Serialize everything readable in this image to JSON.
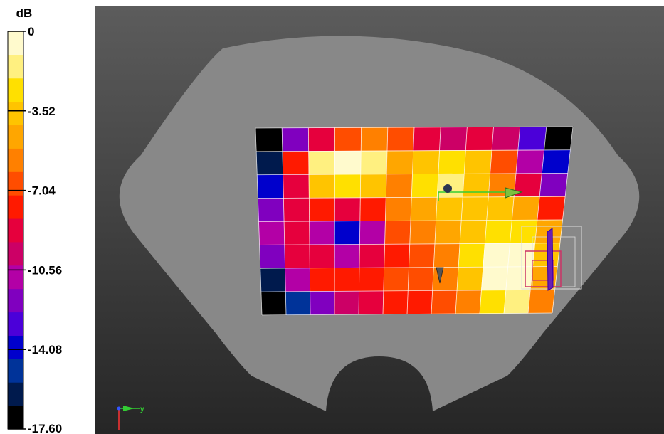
{
  "legend": {
    "unit": "dB",
    "colors": [
      "#000000",
      "#001a4d",
      "#003399",
      "#0000cc",
      "#4b00d9",
      "#8000bf",
      "#b300a6",
      "#cc0066",
      "#e6003d",
      "#ff1a00",
      "#ff4d00",
      "#ff8000",
      "#ffa600",
      "#ffc400",
      "#ffe000",
      "#fff080",
      "#fffacd"
    ],
    "ticks": [
      "0",
      "-3.52",
      "-7.04",
      "-10.56",
      "-14.08",
      "-17.60"
    ]
  },
  "axes_triad": {
    "y_label": "y"
  },
  "chart_data": {
    "type": "heatmap",
    "title": "",
    "colorbar_label": "dB",
    "zlim": [
      -17.6,
      0
    ],
    "colorbar_ticks": [
      0,
      -3.52,
      -7.04,
      -10.56,
      -14.08,
      -17.6
    ],
    "grid": true,
    "rows": 8,
    "cols": 12,
    "values": [
      [
        -17.6,
        -12.0,
        -9.0,
        -7.0,
        -6.0,
        -7.0,
        -9.0,
        -9.5,
        -9.0,
        -10.0,
        -13.0,
        -17.6
      ],
      [
        -16.0,
        -8.0,
        -2.0,
        -1.0,
        -1.5,
        -5.0,
        -4.0,
        -3.0,
        -4.0,
        -7.0,
        -11.0,
        -14.0
      ],
      [
        -14.0,
        -9.0,
        -4.0,
        -2.5,
        -4.0,
        -6.0,
        -3.0,
        -2.0,
        -3.5,
        -6.0,
        -9.0,
        -12.0
      ],
      [
        -12.0,
        -9.0,
        -8.0,
        -9.0,
        -8.0,
        -6.0,
        -5.0,
        -4.0,
        -4.0,
        -4.0,
        -5.0,
        -8.0
      ],
      [
        -11.0,
        -9.0,
        -11.0,
        -14.0,
        -11.0,
        -7.0,
        -6.0,
        -5.0,
        -3.5,
        -3.0,
        -3.0,
        -5.0
      ],
      [
        -12.0,
        -9.0,
        -9.0,
        -11.0,
        -9.0,
        -7.5,
        -7.0,
        -6.0,
        -3.0,
        -1.0,
        -0.5,
        -4.0
      ],
      [
        -16.0,
        -11.0,
        -8.0,
        -8.0,
        -8.0,
        -7.0,
        -7.0,
        -6.0,
        -4.0,
        -1.0,
        -0.5,
        -5.0
      ],
      [
        -17.6,
        -15.0,
        -12.0,
        -10.0,
        -9.0,
        -8.0,
        -7.5,
        -7.0,
        -6.0,
        -3.0,
        -2.0,
        -6.0
      ]
    ]
  }
}
